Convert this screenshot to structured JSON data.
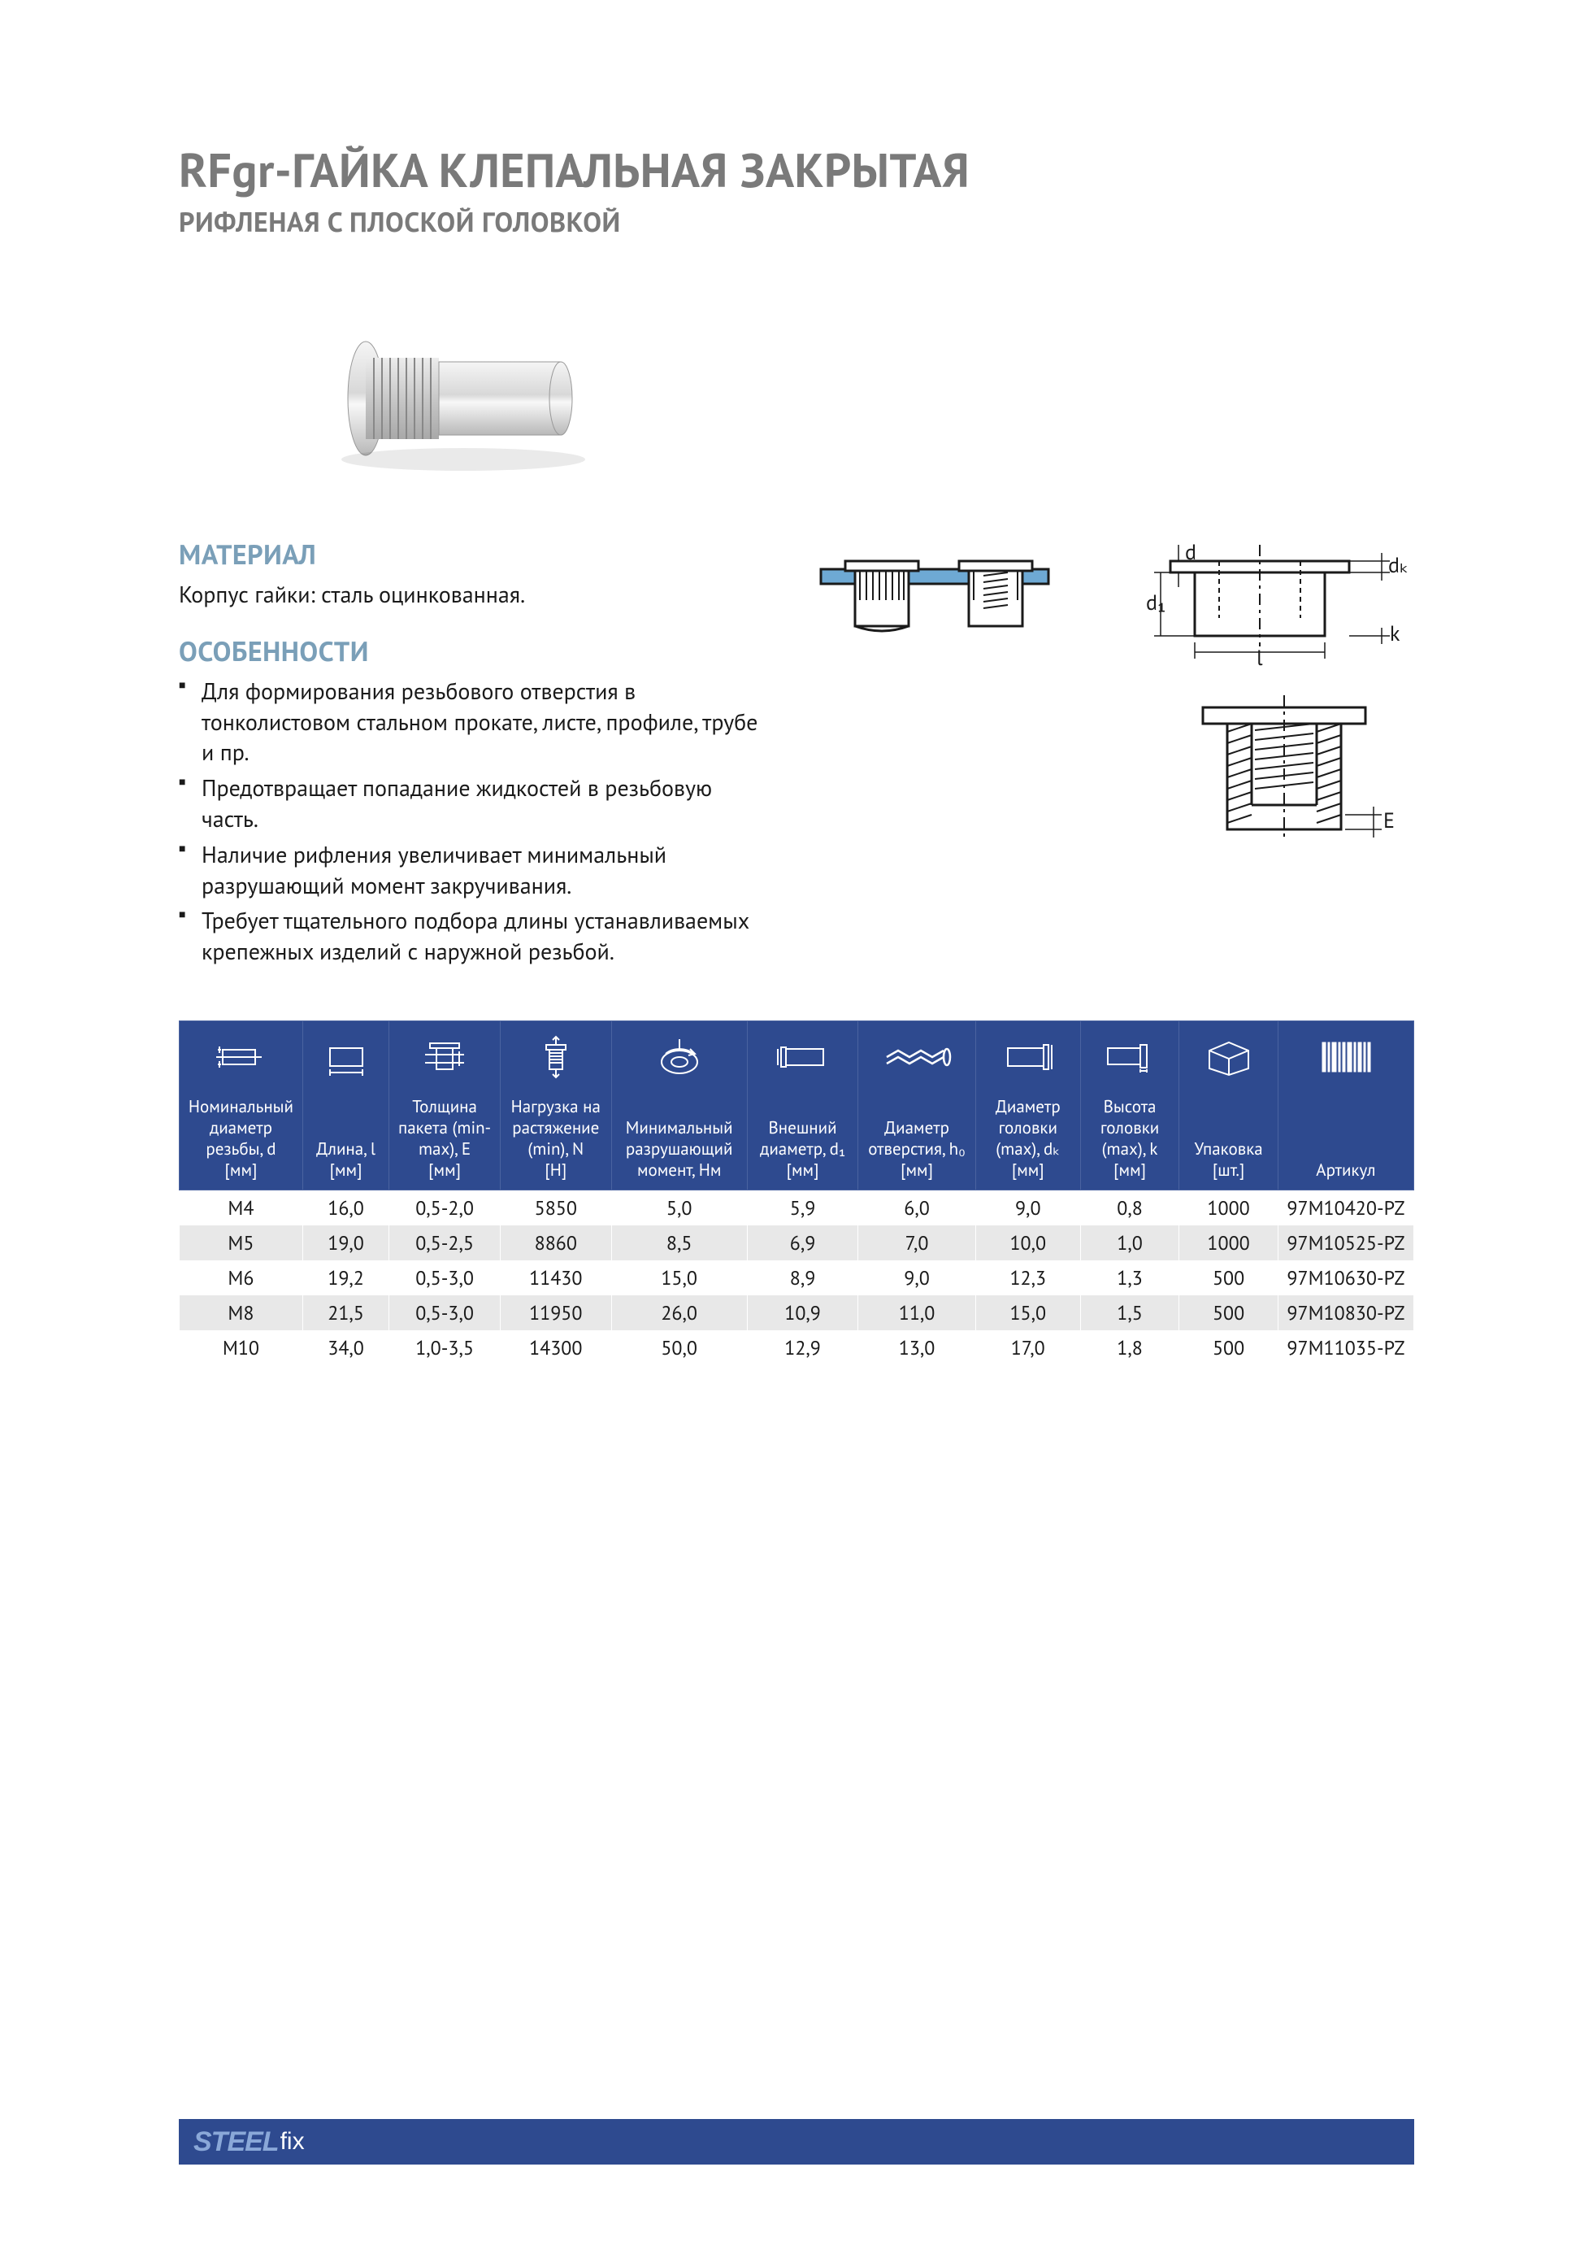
{
  "title": "RFgr-ГАЙКА КЛЕПАЛЬНАЯ ЗАКРЫТАЯ",
  "subtitle": "РИФЛЕНАЯ С ПЛОСКОЙ ГОЛОВКОЙ",
  "material_heading": "МАТЕРИАЛ",
  "material_text": "Корпус гайки: сталь оцинкованная.",
  "features_heading": "ОСОБЕННОСТИ",
  "features": [
    "Для формирования резьбового отверстия в тонколистовом стальном прокате, листе, профиле, трубе и пр.",
    "Предотвращает попадание жидкостей в резьбовую часть.",
    "Наличие рифления увеличивает минимальный разрушающий момент закручивания.",
    "Требует тщательного подбора длины устанавливаемых крепежных изделий с наружной резьбой."
  ],
  "diagram_labels": {
    "d1": "d₁",
    "d": "d",
    "dk": "dₖ",
    "l": "l",
    "k": "k",
    "E": "E"
  },
  "table": {
    "header_bg": "#2e4a8f",
    "header_fg": "#ffffff",
    "row_alt_bg": "#e8e8e8",
    "columns": [
      {
        "label": "Номинальный диаметр резьбы, d",
        "unit": "[мм]"
      },
      {
        "label": "Длина, l",
        "unit": "[мм]"
      },
      {
        "label": "Толщина пакета (min-max), E",
        "unit": "[мм]"
      },
      {
        "label": "Нагрузка на растяжение (min), N",
        "unit": "[H]"
      },
      {
        "label": "Минимальный разрушающий момент, Нм",
        "unit": ""
      },
      {
        "label": "Внешний диаметр, d₁",
        "unit": "[мм]"
      },
      {
        "label": "Диаметр отверстия, h₀",
        "unit": "[мм]"
      },
      {
        "label": "Диаметр головки (max), dₖ",
        "unit": "[мм]"
      },
      {
        "label": "Высота головки (max), k",
        "unit": "[мм]"
      },
      {
        "label": "Упаковка",
        "unit": "[шт.]"
      },
      {
        "label": "Артикул",
        "unit": ""
      }
    ],
    "rows": [
      [
        "M4",
        "16,0",
        "0,5-2,0",
        "5850",
        "5,0",
        "5,9",
        "6,0",
        "9,0",
        "0,8",
        "1000",
        "97M10420-PZ"
      ],
      [
        "M5",
        "19,0",
        "0,5-2,5",
        "8860",
        "8,5",
        "6,9",
        "7,0",
        "10,0",
        "1,0",
        "1000",
        "97M10525-PZ"
      ],
      [
        "M6",
        "19,2",
        "0,5-3,0",
        "11430",
        "15,0",
        "8,9",
        "9,0",
        "12,3",
        "1,3",
        "500",
        "97M10630-PZ"
      ],
      [
        "M8",
        "21,5",
        "0,5-3,0",
        "11950",
        "26,0",
        "10,9",
        "11,0",
        "15,0",
        "1,5",
        "500",
        "97M10830-PZ"
      ],
      [
        "M10",
        "34,0",
        "1,0-3,5",
        "14300",
        "50,0",
        "12,9",
        "13,0",
        "17,0",
        "1,8",
        "500",
        "97M11035-PZ"
      ]
    ]
  },
  "logo": {
    "part1": "STEEL",
    "part2": "fix"
  },
  "colors": {
    "title_gray": "#7a7a7a",
    "section_blue": "#7a9fb8",
    "table_blue": "#2e4a8f",
    "diagram_stroke": "#1a1a1a",
    "diagram_blue": "#6ea9d4"
  }
}
